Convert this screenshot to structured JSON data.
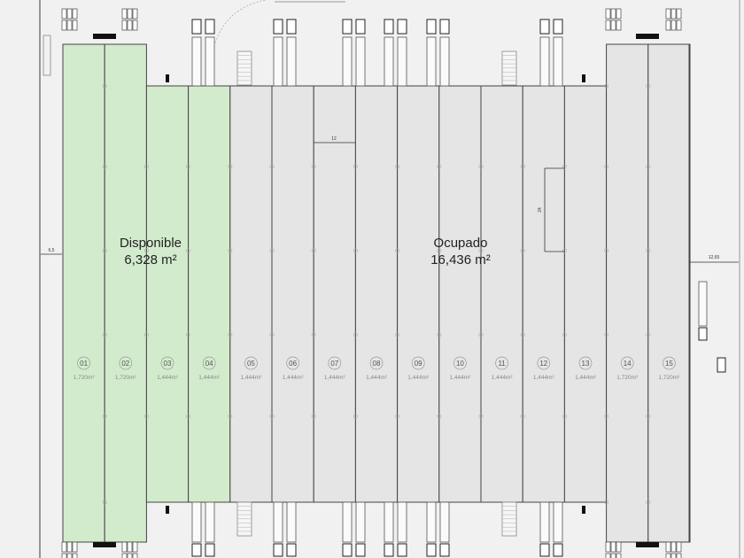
{
  "colors": {
    "available": "#d3ebcd",
    "occupied": "#e5e5e5",
    "outline": "#444444",
    "background": "#f1f1f1"
  },
  "summary": {
    "available": {
      "label": "Disponible",
      "area": "6,328 m²"
    },
    "occupied": {
      "label": "Ocupado",
      "area": "16,436 m²"
    }
  },
  "bays": [
    {
      "id": "01",
      "area": "1,720m²",
      "status": "available"
    },
    {
      "id": "02",
      "area": "1,720m²",
      "status": "available"
    },
    {
      "id": "03",
      "area": "1,444m²",
      "status": "available"
    },
    {
      "id": "04",
      "area": "1,444m²",
      "status": "available"
    },
    {
      "id": "05",
      "area": "1,444m²",
      "status": "occupied"
    },
    {
      "id": "06",
      "area": "1,444m²",
      "status": "occupied"
    },
    {
      "id": "07",
      "area": "1,444m²",
      "status": "occupied"
    },
    {
      "id": "08",
      "area": "1,444m²",
      "status": "occupied"
    },
    {
      "id": "09",
      "area": "1,444m²",
      "status": "occupied"
    },
    {
      "id": "10",
      "area": "1,444m²",
      "status": "occupied"
    },
    {
      "id": "11",
      "area": "1,444m²",
      "status": "occupied"
    },
    {
      "id": "12",
      "area": "1,444m²",
      "status": "occupied"
    },
    {
      "id": "13",
      "area": "1,444m²",
      "status": "occupied"
    },
    {
      "id": "14",
      "area": "1,720m²",
      "status": "occupied"
    },
    {
      "id": "15",
      "area": "1,720m²",
      "status": "occupied"
    }
  ],
  "dimensions": {
    "left_setback": "6,5",
    "right_setback": "12,65",
    "bay_width": "12",
    "dock_depth": "24"
  }
}
